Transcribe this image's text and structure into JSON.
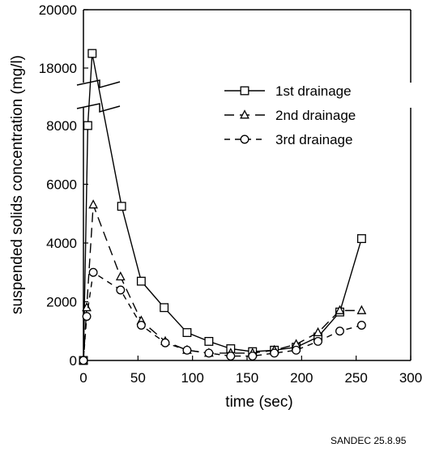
{
  "chart_data": {
    "type": "line",
    "xlabel": "time  (sec)",
    "ylabel": "suspended solids concentration  (mg/l)",
    "xlim": [
      0,
      300
    ],
    "ylim": [
      0,
      20000
    ],
    "axis_break": "between 9000 and 17000 on the y axis",
    "xticks": [
      "0",
      "50",
      "100",
      "150",
      "200",
      "250",
      "300"
    ],
    "yticks": [
      "0",
      "2000",
      "4000",
      "6000",
      "8000",
      "18000",
      "20000"
    ],
    "grid": false,
    "legend_position": "top-right",
    "series": [
      {
        "name": "1st drainage",
        "marker": "square",
        "dash": "solid",
        "points": [
          [
            0,
            0
          ],
          [
            4,
            8000
          ],
          [
            8,
            18500
          ],
          [
            35,
            5250
          ],
          [
            53,
            2700
          ],
          [
            74,
            1800
          ],
          [
            95,
            950
          ],
          [
            115,
            650
          ],
          [
            135,
            400
          ],
          [
            155,
            300
          ],
          [
            175,
            350
          ],
          [
            195,
            450
          ],
          [
            215,
            800
          ],
          [
            235,
            1650
          ],
          [
            255,
            4150
          ]
        ]
      },
      {
        "name": "2nd drainage",
        "marker": "triangle",
        "dash": "dashed",
        "points": [
          [
            0,
            0
          ],
          [
            3,
            1800
          ],
          [
            9,
            5300
          ],
          [
            34,
            2850
          ],
          [
            53,
            1350
          ],
          [
            75,
            650
          ],
          [
            95,
            350
          ],
          [
            115,
            250
          ],
          [
            135,
            250
          ],
          [
            155,
            250
          ],
          [
            175,
            350
          ],
          [
            195,
            550
          ],
          [
            215,
            950
          ],
          [
            235,
            1700
          ],
          [
            255,
            1700
          ]
        ]
      },
      {
        "name": "3rd drainage",
        "marker": "circle",
        "dash": "shortdash",
        "points": [
          [
            0,
            0
          ],
          [
            3,
            1500
          ],
          [
            9,
            3000
          ],
          [
            34,
            2400
          ],
          [
            53,
            1200
          ],
          [
            75,
            600
          ],
          [
            95,
            350
          ],
          [
            115,
            250
          ],
          [
            135,
            150
          ],
          [
            155,
            150
          ],
          [
            175,
            250
          ],
          [
            195,
            350
          ],
          [
            215,
            650
          ],
          [
            235,
            1000
          ],
          [
            255,
            1200
          ]
        ]
      }
    ]
  },
  "footer_text": "SANDEC 25.8.95"
}
